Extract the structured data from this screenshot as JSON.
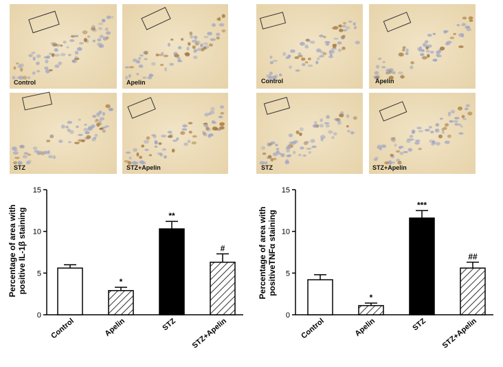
{
  "micrograph_panels": [
    {
      "tiles": [
        {
          "label": "Control"
        },
        {
          "label": "Apelin"
        },
        {
          "label": "STZ"
        },
        {
          "label": "STZ+Apelin"
        }
      ]
    },
    {
      "tiles": [
        {
          "label": "Control"
        },
        {
          "label": "Apelin"
        },
        {
          "label": "STZ"
        },
        {
          "label": "STZ+Apelin"
        }
      ]
    }
  ],
  "colors": {
    "tissue_background": "#ead9b6",
    "cell_nucleus": "#9fa6c4",
    "stain_brown": "#a3773f",
    "bar_control": "#ffffff",
    "bar_stz": "#000000",
    "hatch": "#000000"
  },
  "chart_data": [
    {
      "type": "bar",
      "title": "",
      "xlabel": "",
      "ylabel_lines": [
        "Percentage of area with",
        "positive IL-1β  staining"
      ],
      "ylim": [
        0,
        15
      ],
      "yticks": [
        0,
        5,
        10,
        15
      ],
      "grid": false,
      "categories": [
        "Control",
        "Apelin",
        "STZ",
        "STZ+Apelin"
      ],
      "values": [
        5.6,
        2.9,
        10.3,
        6.3
      ],
      "errors": [
        0.4,
        0.4,
        0.9,
        1.0
      ],
      "significance": [
        "",
        "*",
        "**",
        "#"
      ],
      "fills": [
        "white",
        "hatch",
        "black",
        "hatch"
      ]
    },
    {
      "type": "bar",
      "title": "",
      "xlabel": "",
      "ylabel_lines": [
        "Percentage of area with",
        "positiveTNFα  staining"
      ],
      "ylim": [
        0,
        15
      ],
      "yticks": [
        0,
        5,
        10,
        15
      ],
      "grid": false,
      "categories": [
        "Control",
        "Apelin",
        "STZ",
        "STZ+Apelin"
      ],
      "values": [
        4.2,
        1.1,
        11.6,
        5.6
      ],
      "errors": [
        0.6,
        0.3,
        0.9,
        0.7
      ],
      "significance": [
        "",
        "*",
        "***",
        "##"
      ],
      "fills": [
        "white",
        "hatch",
        "black",
        "hatch"
      ]
    }
  ]
}
